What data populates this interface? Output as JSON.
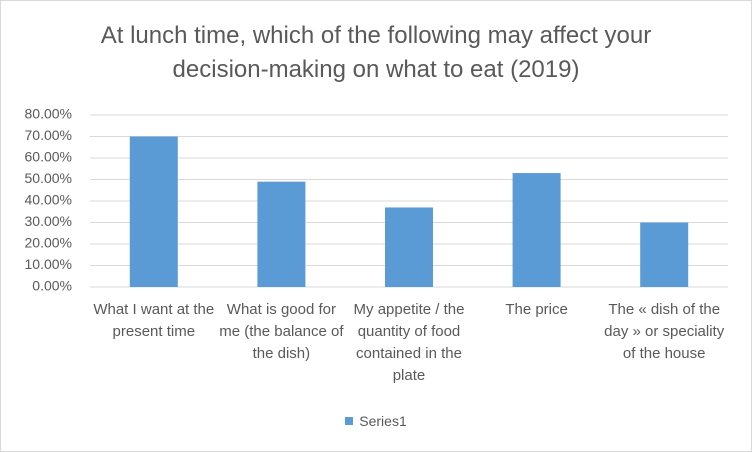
{
  "chart_data": {
    "type": "bar",
    "title": "At lunch time, which of the following may affect your decision-making on what to eat (2019)",
    "categories": [
      "What I want at the present time",
      "What is good for me (the balance of the dish)",
      "My appetite / the quantity of food contained in the plate",
      "The price",
      "The « dish of the day » or speciality of the house"
    ],
    "series": [
      {
        "name": "Series1",
        "color": "#5b9bd5",
        "values": [
          70,
          49,
          37,
          53,
          30
        ]
      }
    ],
    "ylim": [
      0,
      80
    ],
    "yticks": [
      {
        "value": 0,
        "label": "0.00%"
      },
      {
        "value": 10,
        "label": "10.00%"
      },
      {
        "value": 20,
        "label": "20.00%"
      },
      {
        "value": 30,
        "label": "30.00%"
      },
      {
        "value": 40,
        "label": "40.00%"
      },
      {
        "value": 50,
        "label": "50.00%"
      },
      {
        "value": 60,
        "label": "60.00%"
      },
      {
        "value": 70,
        "label": "70.00%"
      },
      {
        "value": 80,
        "label": "80.00%"
      }
    ],
    "grid": true,
    "legend": "bottom"
  }
}
